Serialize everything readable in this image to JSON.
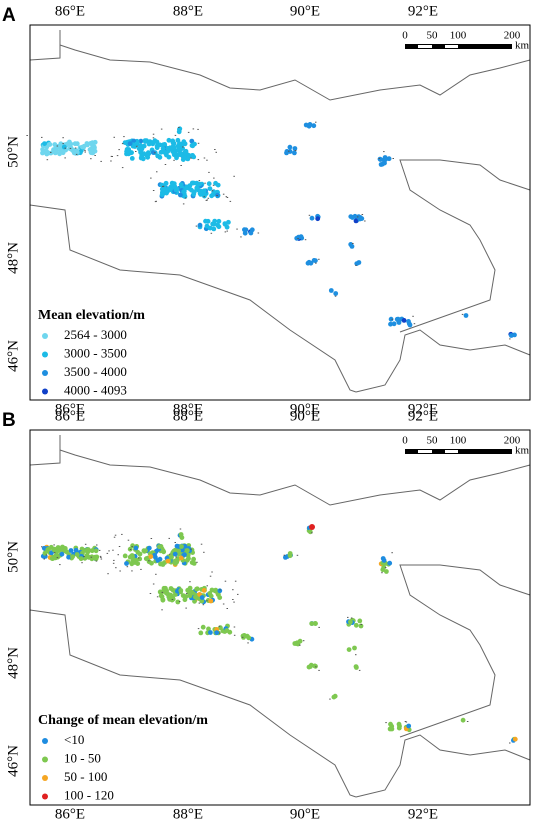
{
  "panels": [
    {
      "label": "A",
      "lon_labels": [
        "86°E",
        "88°E",
        "90°E",
        "92°E"
      ],
      "lat_labels": [
        "50°N",
        "48°N",
        "46°N"
      ],
      "scale_labels": [
        "0",
        "50",
        "100",
        "200"
      ],
      "scale_unit": "km",
      "legend": {
        "title": "Mean elevation/m",
        "items": [
          {
            "label": "2564 - 3000",
            "color": "#6fd6ee"
          },
          {
            "label": "3000 - 3500",
            "color": "#1cbbe6"
          },
          {
            "label": "3500 - 4000",
            "color": "#1e8fe0"
          },
          {
            "label": "4000 - 4093",
            "color": "#1040c8"
          }
        ]
      }
    },
    {
      "label": "B",
      "lon_labels": [
        "86°E",
        "88°E",
        "90°E",
        "92°E"
      ],
      "lat_labels": [
        "50°N",
        "48°N",
        "46°N"
      ],
      "scale_labels": [
        "0",
        "50",
        "100",
        "200"
      ],
      "scale_unit": "km",
      "legend": {
        "title": "Change of mean elevation/m",
        "items": [
          {
            "label": "<10",
            "color": "#1e8ce0"
          },
          {
            "label": "10 - 50",
            "color": "#7ec850"
          },
          {
            "label": "50 - 100",
            "color": "#f5a623"
          },
          {
            "label": "100 - 120",
            "color": "#e02020"
          }
        ]
      }
    }
  ]
}
